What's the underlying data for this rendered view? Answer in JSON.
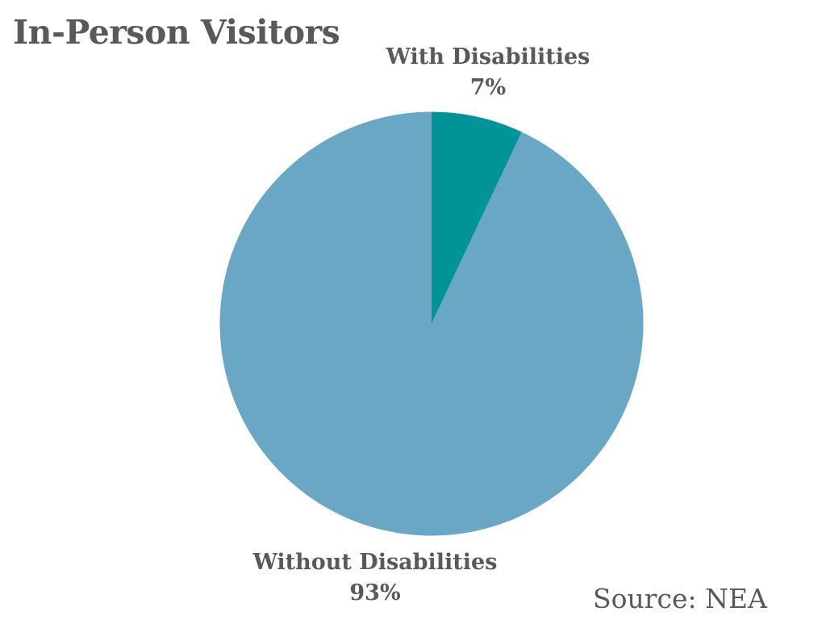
{
  "header": {
    "title": "In-Person Visitors"
  },
  "chart_data": {
    "type": "pie",
    "title": "In-Person Visitors",
    "slices": [
      {
        "label": "With Disabilities",
        "pct_label": "7%",
        "value": 7,
        "color": "#009499"
      },
      {
        "label": "Without Disabilities",
        "pct_label": "93%",
        "value": 93,
        "color": "#69A7C4"
      }
    ],
    "start_angle": "12-oclock",
    "direction": "clockwise",
    "legend_position": "none",
    "grid": false,
    "source": "Source: NEA",
    "text_color": "#58595B",
    "background_color": "#ffffff"
  }
}
